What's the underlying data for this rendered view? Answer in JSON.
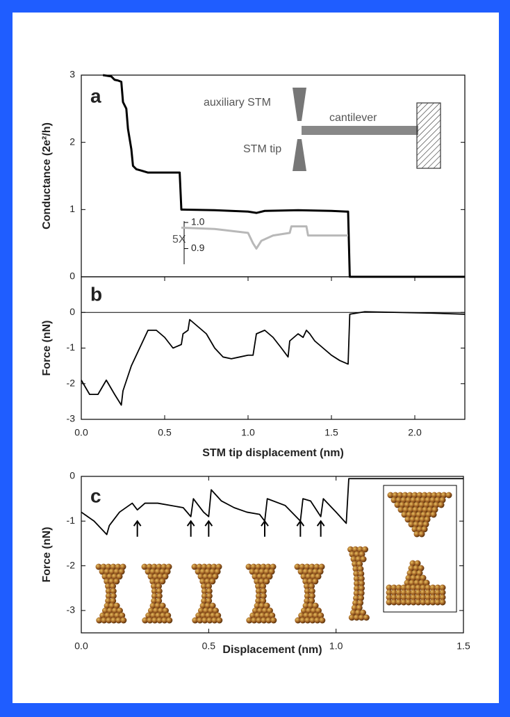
{
  "chart_data": [
    {
      "type": "line",
      "panel_label": "a",
      "ylabel": "Conductance (2e²/h)",
      "xlim": [
        0,
        2.3
      ],
      "ylim": [
        0,
        3
      ],
      "yticks": [
        0,
        1,
        2,
        3
      ],
      "annotations": [
        "auxiliary STM",
        "cantilever",
        "STM tip"
      ],
      "series": [
        {
          "color": "#000000",
          "x": [
            0.13,
            0.18,
            0.2,
            0.22,
            0.24,
            0.25,
            0.27,
            0.28,
            0.3,
            0.31,
            0.33,
            0.36,
            0.4,
            0.5,
            0.59,
            0.6,
            0.61,
            0.8,
            1.0,
            1.05,
            1.1,
            1.3,
            1.5,
            1.59,
            1.6,
            1.61,
            2.3
          ],
          "values": [
            3,
            2.98,
            2.93,
            2.92,
            2.9,
            2.6,
            2.5,
            2.2,
            1.9,
            1.65,
            1.6,
            1.58,
            1.55,
            1.55,
            1.55,
            1.0,
            1.0,
            0.99,
            0.97,
            0.95,
            0.98,
            0.99,
            0.98,
            0.97,
            0.97,
            0,
            0
          ]
        }
      ],
      "inset": {
        "label": "5X",
        "ylim": [
          0.84,
          1.005
        ],
        "yticks": [
          {
            "value": 1.0,
            "label": "1.0"
          },
          0.9
        ],
        "series": [
          {
            "color": "#b8b8b8",
            "x": [
              0.6,
              0.8,
              1.0,
              1.03,
              1.05,
              1.08,
              1.15,
              1.25,
              1.26,
              1.3,
              1.35,
              1.36,
              1.45,
              1.6
            ],
            "values": [
              0.98,
              0.975,
              0.96,
              0.92,
              0.9,
              0.93,
              0.95,
              0.96,
              0.985,
              0.985,
              0.985,
              0.95,
              0.95,
              0.95
            ]
          }
        ]
      }
    },
    {
      "type": "line",
      "panel_label": "b",
      "ylabel": "Force (nN)",
      "xlabel": "STM tip displacement (nm)",
      "xlim": [
        0,
        2.3
      ],
      "ylim": [
        -3,
        1
      ],
      "xticks": [
        {
          "value": 0,
          "label": "0.0"
        },
        0.5,
        {
          "value": 1,
          "label": "1.0"
        },
        1.5,
        {
          "value": 2,
          "label": "2.0"
        }
      ],
      "yticks": [
        0,
        -1,
        -2,
        -3
      ],
      "zero_line": true,
      "series": [
        {
          "color": "#000000",
          "x": [
            0,
            0.05,
            0.1,
            0.15,
            0.2,
            0.24,
            0.25,
            0.3,
            0.35,
            0.4,
            0.45,
            0.5,
            0.55,
            0.6,
            0.61,
            0.64,
            0.65,
            0.7,
            0.75,
            0.8,
            0.85,
            0.9,
            0.95,
            1.0,
            1.03,
            1.05,
            1.1,
            1.15,
            1.2,
            1.24,
            1.25,
            1.3,
            1.33,
            1.35,
            1.37,
            1.4,
            1.45,
            1.5,
            1.55,
            1.6,
            1.61,
            1.7,
            1.9,
            2.1,
            2.3
          ],
          "values": [
            -1.9,
            -2.3,
            -2.3,
            -1.9,
            -2.3,
            -2.6,
            -2.2,
            -1.5,
            -1.0,
            -0.5,
            -0.5,
            -0.7,
            -1.0,
            -0.9,
            -0.6,
            -0.5,
            -0.2,
            -0.4,
            -0.6,
            -1.0,
            -1.25,
            -1.3,
            -1.25,
            -1.2,
            -1.2,
            -0.6,
            -0.5,
            -0.7,
            -1.0,
            -1.25,
            -0.8,
            -0.6,
            -0.7,
            -0.5,
            -0.6,
            -0.8,
            -1.0,
            -1.2,
            -1.35,
            -1.45,
            -0.05,
            0.02,
            0.0,
            -0.02,
            -0.05
          ]
        }
      ]
    },
    {
      "type": "line",
      "panel_label": "c",
      "ylabel": "Force (nN)",
      "xlabel": "Displacement (nm)",
      "xlim": [
        0,
        1.5
      ],
      "ylim": [
        -3.5,
        0
      ],
      "xticks": [
        {
          "value": 0,
          "label": "0.0"
        },
        0.5,
        {
          "value": 1,
          "label": "1.0"
        },
        1.5
      ],
      "yticks": [
        0,
        -1,
        -2,
        -3
      ],
      "arrows_x": [
        0.22,
        0.43,
        0.5,
        0.72,
        0.86,
        0.94
      ],
      "series": [
        {
          "color": "#000000",
          "x": [
            0,
            0.05,
            0.1,
            0.11,
            0.15,
            0.2,
            0.22,
            0.25,
            0.3,
            0.35,
            0.4,
            0.43,
            0.44,
            0.48,
            0.5,
            0.51,
            0.55,
            0.6,
            0.65,
            0.7,
            0.72,
            0.73,
            0.8,
            0.86,
            0.87,
            0.9,
            0.94,
            0.95,
            1.0,
            1.04,
            1.05,
            1.1,
            1.3,
            1.5
          ],
          "values": [
            -0.8,
            -1.0,
            -1.3,
            -1.1,
            -0.8,
            -0.6,
            -0.75,
            -0.6,
            -0.6,
            -0.65,
            -0.7,
            -0.9,
            -0.5,
            -0.8,
            -0.9,
            -0.3,
            -0.55,
            -0.7,
            -0.8,
            -0.85,
            -1.0,
            -0.5,
            -0.65,
            -1.0,
            -0.5,
            -0.55,
            -0.9,
            -0.5,
            -0.8,
            -1.05,
            -0.05,
            -0.05,
            -0.05,
            -0.05
          ]
        }
      ]
    }
  ]
}
